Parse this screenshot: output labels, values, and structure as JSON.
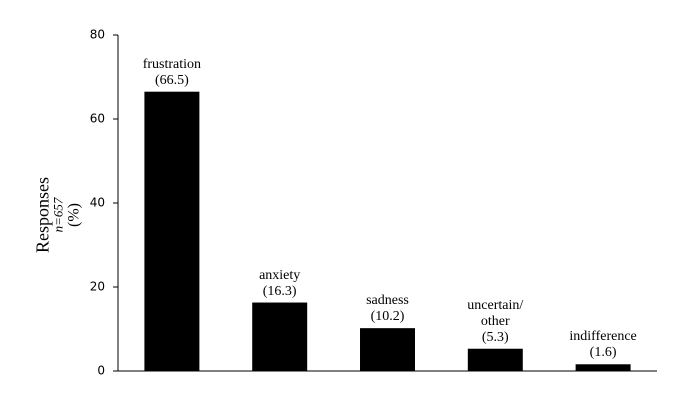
{
  "chart_data": {
    "type": "bar",
    "ylabel": "Responses",
    "ylabel_note": "n=657",
    "ylabel_unit": "(%)",
    "categories": [
      "frustration",
      "anxiety",
      "sadness",
      "uncertain/\nother",
      "indifference"
    ],
    "values": [
      66.5,
      16.3,
      10.2,
      5.3,
      1.6
    ],
    "value_labels": [
      "(66.5)",
      "(16.3)",
      "(10.2)",
      "(5.3)",
      "(1.6)"
    ],
    "color": "#000000",
    "ylim": [
      0,
      80
    ],
    "yticks": [
      0,
      20,
      40,
      60,
      80
    ],
    "grid": false
  }
}
